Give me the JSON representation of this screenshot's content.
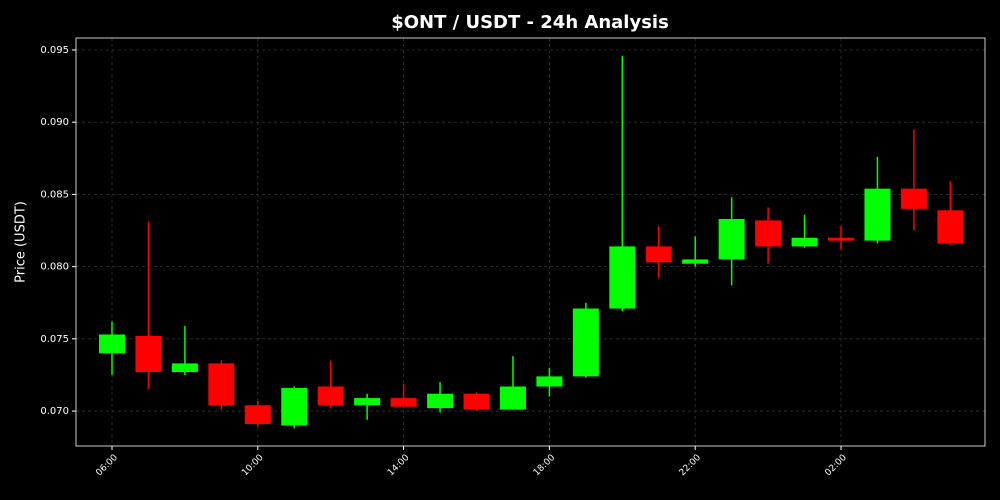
{
  "chart_data": {
    "type": "candlestick",
    "title": "$ONT / USDT - 24h Analysis",
    "y_label": "Price (USDT)",
    "categories": [
      "06:00",
      null,
      null,
      null,
      "10:00",
      null,
      null,
      null,
      "14:00",
      null,
      null,
      null,
      "18:00",
      null,
      null,
      null,
      "22:00",
      null,
      null,
      null,
      "02:00",
      null,
      null,
      null
    ],
    "open": [
      0.074,
      0.0752,
      0.0727,
      0.0733,
      0.0704,
      0.069,
      0.0717,
      0.0704,
      0.0709,
      0.0702,
      0.0712,
      0.0701,
      0.0717,
      0.0724,
      0.0771,
      0.0814,
      0.0802,
      0.0805,
      0.0832,
      0.0814,
      0.082,
      0.0818,
      0.0854,
      0.0839
    ],
    "high": [
      0.0762,
      0.0831,
      0.0759,
      0.0735,
      0.0707,
      0.0717,
      0.0735,
      0.0712,
      0.0719,
      0.072,
      0.0713,
      0.0738,
      0.073,
      0.0775,
      0.0946,
      0.0828,
      0.0821,
      0.0848,
      0.0841,
      0.0836,
      0.0828,
      0.0876,
      0.0895,
      0.0859
    ],
    "low": [
      0.0725,
      0.0715,
      0.0725,
      0.0701,
      0.0689,
      0.0688,
      0.0702,
      0.0694,
      0.0702,
      0.0699,
      0.07,
      0.0701,
      0.071,
      0.0723,
      0.0769,
      0.0792,
      0.08,
      0.0787,
      0.0802,
      0.0813,
      0.0812,
      0.0816,
      0.0825,
      0.0815
    ],
    "close": [
      0.0753,
      0.0727,
      0.0733,
      0.0704,
      0.0691,
      0.0716,
      0.0704,
      0.0709,
      0.0703,
      0.0712,
      0.0701,
      0.0717,
      0.0724,
      0.0771,
      0.0814,
      0.0803,
      0.0805,
      0.0833,
      0.0814,
      0.082,
      0.0818,
      0.0854,
      0.084,
      0.0816
    ],
    "up_color": "#00ff00",
    "down_color": "#ff0000",
    "ylim": [
      0.06758,
      0.09583
    ],
    "yticks": [
      {
        "value": 0.07,
        "label": "0.070"
      },
      {
        "value": 0.075,
        "label": "0.075"
      },
      {
        "value": 0.08,
        "label": "0.080"
      },
      {
        "value": 0.085,
        "label": "0.085"
      },
      {
        "value": 0.09,
        "label": "0.090"
      },
      {
        "value": 0.095,
        "label": "0.095"
      }
    ],
    "grid": true
  }
}
